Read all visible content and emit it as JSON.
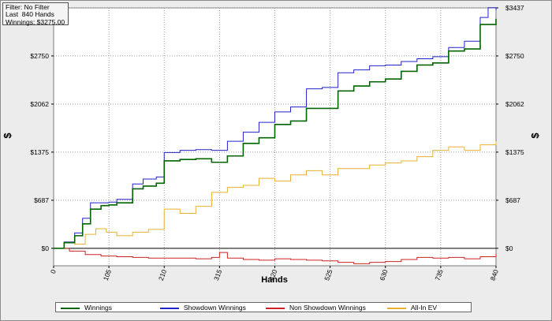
{
  "info": {
    "filter": "Filter: No Filter",
    "last": "Last  840 Hands",
    "winnings": "Winnings: $3275.00"
  },
  "chart_data": {
    "type": "line",
    "xlabel": "Hands",
    "ylabel": "$",
    "xlim": [
      0,
      840
    ],
    "ylim": [
      -250,
      3437
    ],
    "x_ticks": [
      0,
      105,
      210,
      315,
      420,
      525,
      630,
      735,
      840
    ],
    "y_ticks": [
      0,
      687,
      1375,
      2062,
      2750,
      3437
    ],
    "y_tick_labels": [
      "$0",
      "$687",
      "$1375",
      "$2062",
      "$2750",
      "$3437"
    ],
    "grid": true,
    "legend_position": "bottom",
    "series": [
      {
        "name": "Winnings",
        "color": "#006400",
        "x": [
          0,
          20,
          40,
          55,
          70,
          90,
          105,
          120,
          150,
          170,
          195,
          210,
          240,
          270,
          300,
          330,
          360,
          390,
          420,
          450,
          480,
          510,
          540,
          570,
          600,
          630,
          660,
          690,
          720,
          750,
          780,
          810,
          840
        ],
        "y": [
          0,
          80,
          180,
          350,
          560,
          610,
          620,
          650,
          850,
          890,
          930,
          1250,
          1270,
          1280,
          1230,
          1320,
          1500,
          1580,
          1770,
          1820,
          2000,
          2000,
          2250,
          2320,
          2380,
          2420,
          2530,
          2620,
          2650,
          2820,
          2850,
          3200,
          3280
        ]
      },
      {
        "name": "Showdown Winnings",
        "color": "#2222cc",
        "x": [
          0,
          20,
          40,
          55,
          70,
          90,
          105,
          120,
          150,
          170,
          195,
          210,
          240,
          270,
          300,
          330,
          360,
          390,
          420,
          450,
          480,
          510,
          540,
          570,
          600,
          630,
          660,
          690,
          720,
          750,
          780,
          810,
          825,
          840
        ],
        "y": [
          0,
          90,
          220,
          430,
          650,
          650,
          660,
          700,
          920,
          990,
          1020,
          1370,
          1400,
          1410,
          1400,
          1530,
          1660,
          1800,
          1950,
          2020,
          2280,
          2300,
          2510,
          2550,
          2610,
          2620,
          2670,
          2710,
          2740,
          2870,
          2960,
          3300,
          3440,
          3400
        ]
      },
      {
        "name": "Non Showdown Winnings",
        "color": "#cc2222",
        "x": [
          0,
          30,
          60,
          90,
          120,
          150,
          180,
          210,
          240,
          270,
          300,
          315,
          330,
          360,
          390,
          420,
          450,
          480,
          510,
          540,
          570,
          600,
          630,
          660,
          690,
          720,
          750,
          780,
          810,
          840
        ],
        "y": [
          0,
          -40,
          -90,
          -110,
          -120,
          -130,
          -140,
          -140,
          -140,
          -150,
          -130,
          -60,
          -140,
          -160,
          -170,
          -150,
          -160,
          -170,
          -180,
          -200,
          -220,
          -200,
          -190,
          -160,
          -130,
          -140,
          -130,
          -150,
          -120,
          -80
        ]
      },
      {
        "name": "All-In EV",
        "color": "#e8b030",
        "x": [
          0,
          20,
          40,
          60,
          80,
          100,
          120,
          150,
          180,
          210,
          240,
          270,
          300,
          330,
          360,
          390,
          420,
          450,
          480,
          510,
          540,
          570,
          600,
          630,
          660,
          690,
          720,
          750,
          780,
          810,
          840
        ],
        "y": [
          0,
          90,
          60,
          200,
          280,
          230,
          180,
          230,
          270,
          560,
          500,
          600,
          800,
          870,
          900,
          1000,
          960,
          1050,
          1110,
          1050,
          1140,
          1140,
          1190,
          1220,
          1250,
          1310,
          1400,
          1450,
          1400,
          1480,
          1530
        ]
      }
    ]
  }
}
